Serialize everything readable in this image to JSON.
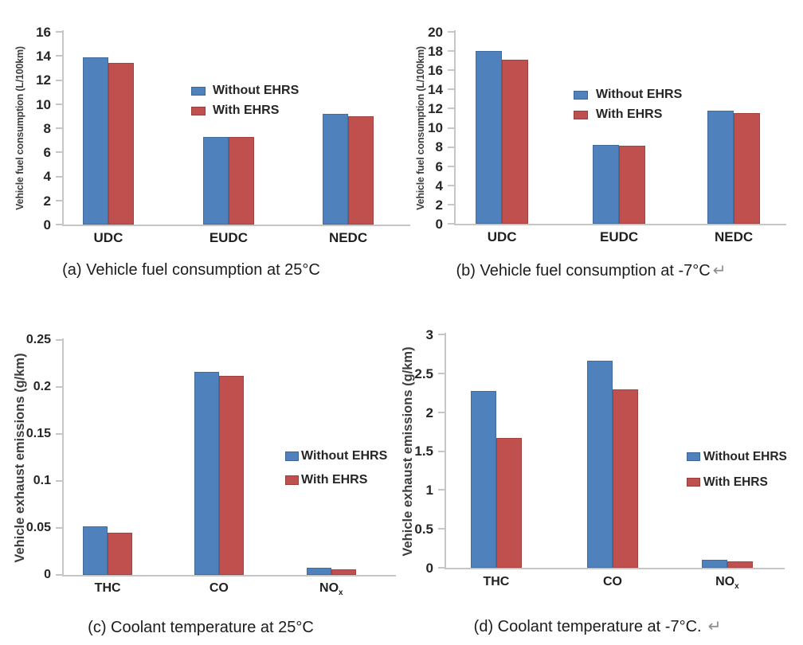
{
  "figure": {
    "title": "",
    "legend_labels": {
      "series1": "Without EHRS",
      "series2": "With EHRS"
    },
    "colors": {
      "without_ehrs": "#4f81bd",
      "with_ehrs": "#c0504d",
      "axis": "#c6c6c6",
      "tick_text": "#262626",
      "caption_text": "#1c1c1c",
      "return_mark": "#8c8c8c"
    }
  },
  "chart_data": [
    {
      "type": "bar",
      "panel": "a",
      "caption": "(a) Vehicle fuel consumption at 25°C",
      "return_mark": "",
      "ylabel": "Vehicle fuel consumption (L/100km)",
      "xlabel": "",
      "ylim": [
        0,
        16
      ],
      "ytick_labels": [
        "16",
        "14",
        "12",
        "10",
        "8",
        "6",
        "4",
        "2",
        "0"
      ],
      "categories": [
        "UDC",
        "EUDC",
        "NEDC"
      ],
      "series": [
        {
          "name": "Without EHRS",
          "color": "#4f81bd",
          "values": [
            13.9,
            7.3,
            9.2
          ]
        },
        {
          "name": "With EHRS",
          "color": "#c0504d",
          "values": [
            13.4,
            7.25,
            9.0
          ]
        }
      ],
      "legend_position": "inside-upper-center",
      "grid": false
    },
    {
      "type": "bar",
      "panel": "b",
      "caption": "(b) Vehicle fuel consumption at -7°C",
      "return_mark": "↵",
      "ylabel": "Vehicle fuel consumption (L/100km)",
      "xlabel": "",
      "ylim": [
        0,
        20
      ],
      "ytick_labels": [
        "20",
        "18",
        "16",
        "14",
        "12",
        "10",
        "8",
        "6",
        "4",
        "2",
        "0"
      ],
      "categories": [
        "UDC",
        "EUDC",
        "NEDC"
      ],
      "series": [
        {
          "name": "Without EHRS",
          "color": "#4f81bd",
          "values": [
            18.0,
            8.2,
            11.8
          ]
        },
        {
          "name": "With EHRS",
          "color": "#c0504d",
          "values": [
            17.1,
            8.15,
            11.5
          ]
        }
      ],
      "legend_position": "inside-upper-center",
      "grid": false
    },
    {
      "type": "bar",
      "panel": "c",
      "caption": "(c) Coolant temperature at 25°C",
      "return_mark": "",
      "ylabel": "Vehicle exhaust emissions (g/km)",
      "xlabel": "",
      "ylim": [
        0,
        0.25
      ],
      "ytick_labels": [
        "0.25",
        "0.2",
        "0.15",
        "0.1",
        "0.05",
        "0"
      ],
      "categories": [
        "THC",
        "CO",
        "NOx"
      ],
      "series": [
        {
          "name": "Without EHRS",
          "color": "#4f81bd",
          "values": [
            0.052,
            0.216,
            0.0075
          ]
        },
        {
          "name": "With EHRS",
          "color": "#c0504d",
          "values": [
            0.045,
            0.212,
            0.006
          ]
        }
      ],
      "legend_position": "inside-middle-right",
      "grid": false
    },
    {
      "type": "bar",
      "panel": "d",
      "caption": "(d) Coolant temperature at -7°C.",
      "return_mark": "↵",
      "ylabel": "Vehicle exhaust emissions (g/km)",
      "xlabel": "",
      "ylim": [
        0,
        3
      ],
      "ytick_labels": [
        "3",
        "2.5",
        "2",
        "1.5",
        "1",
        "0.5",
        "0"
      ],
      "categories": [
        "THC",
        "CO",
        "NOx"
      ],
      "series": [
        {
          "name": "Without EHRS",
          "color": "#4f81bd",
          "values": [
            2.27,
            2.66,
            0.1
          ]
        },
        {
          "name": "With EHRS",
          "color": "#c0504d",
          "values": [
            1.67,
            2.29,
            0.08
          ]
        }
      ],
      "legend_position": "inside-middle-right",
      "grid": false
    }
  ]
}
